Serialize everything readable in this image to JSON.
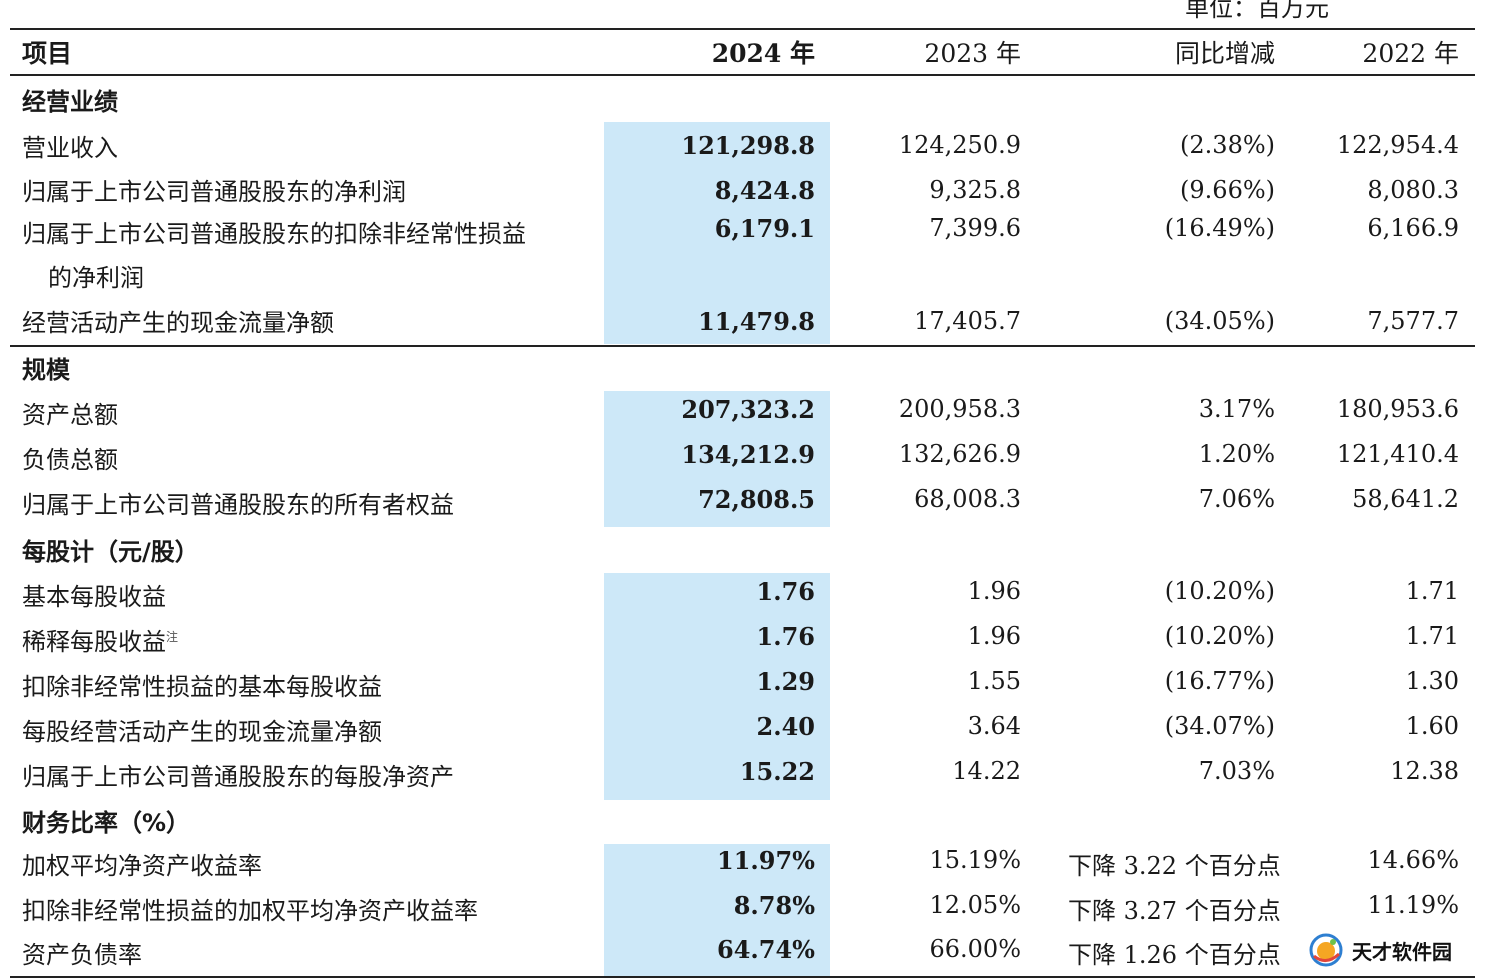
{
  "unit": "单位：百万元",
  "header": {
    "label": "项目",
    "col2024": "2024 年",
    "col2023": "2023 年",
    "yoy": "同比增减",
    "col2022": "2022 年"
  },
  "sections": {
    "operating": "经营业绩",
    "scale": "规模",
    "per_share": "每股计（元/股）",
    "ratios": "财务比率（%）"
  },
  "rows": [
    {
      "label": "营业收入",
      "v2024": "121,298.8",
      "v2023": "124,250.9",
      "yoy": "(2.38%)",
      "v2022": "122,954.4"
    },
    {
      "label": "归属于上市公司普通股股东的净利润",
      "v2024": "8,424.8",
      "v2023": "9,325.8",
      "yoy": "(9.66%)",
      "v2022": "8,080.3"
    },
    {
      "label": "归属于上市公司普通股股东的扣除非经常性损益",
      "label2": "的净利润",
      "v2024": "6,179.1",
      "v2023": "7,399.6",
      "yoy": "(16.49%)",
      "v2022": "6,166.9"
    },
    {
      "label": "经营活动产生的现金流量净额",
      "v2024": "11,479.8",
      "v2023": "17,405.7",
      "yoy": "(34.05%)",
      "v2022": "7,577.7"
    },
    {
      "label": "资产总额",
      "v2024": "207,323.2",
      "v2023": "200,958.3",
      "yoy": "3.17%",
      "v2022": "180,953.6"
    },
    {
      "label": "负债总额",
      "v2024": "134,212.9",
      "v2023": "132,626.9",
      "yoy": "1.20%",
      "v2022": "121,410.4"
    },
    {
      "label": "归属于上市公司普通股股东的所有者权益",
      "v2024": "72,808.5",
      "v2023": "68,008.3",
      "yoy": "7.06%",
      "v2022": "58,641.2"
    },
    {
      "label": "基本每股收益",
      "v2024": "1.76",
      "v2023": "1.96",
      "yoy": "(10.20%)",
      "v2022": "1.71"
    },
    {
      "label": "稀释每股收益",
      "note": "注",
      "v2024": "1.76",
      "v2023": "1.96",
      "yoy": "(10.20%)",
      "v2022": "1.71"
    },
    {
      "label": "扣除非经常性损益的基本每股收益",
      "v2024": "1.29",
      "v2023": "1.55",
      "yoy": "(16.77%)",
      "v2022": "1.30"
    },
    {
      "label": "每股经营活动产生的现金流量净额",
      "v2024": "2.40",
      "v2023": "3.64",
      "yoy": "(34.07%)",
      "v2022": "1.60"
    },
    {
      "label": "归属于上市公司普通股股东的每股净资产",
      "v2024": "15.22",
      "v2023": "14.22",
      "yoy": "7.03%",
      "v2022": "12.38"
    },
    {
      "label": "加权平均净资产收益率",
      "v2024": "11.97%",
      "v2023": "15.19%",
      "yoy": "下降 3.22 个百分点",
      "v2022": "14.66%"
    },
    {
      "label": "扣除非经常性损益的加权平均净资产收益率",
      "v2024": "8.78%",
      "v2023": "12.05%",
      "yoy": "下降 3.27 个百分点",
      "v2022": "11.19%"
    },
    {
      "label": "资产负债率",
      "v2024": "64.74%",
      "v2023": "66.00%",
      "yoy": "下降 1.26 个百分点",
      "v2022": ""
    }
  ],
  "watermark": {
    "text": "天才软件园",
    "icon": "tiancai-logo-icon"
  }
}
